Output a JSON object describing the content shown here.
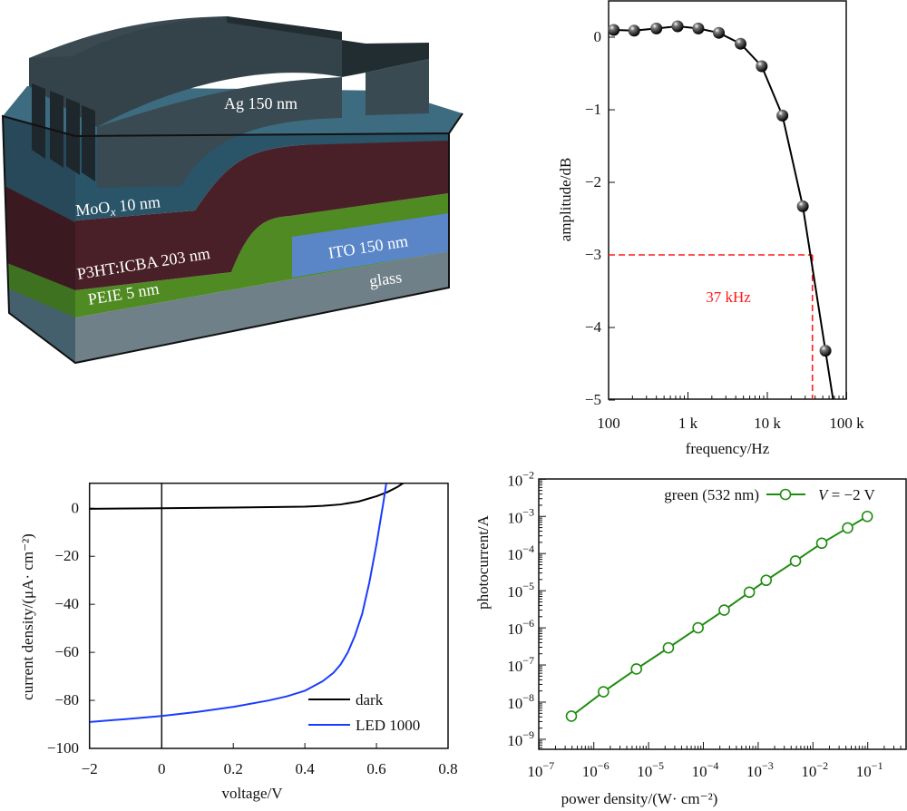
{
  "schematic": {
    "labels": {
      "ag": "Ag 150 nm",
      "moox_base": "MoO",
      "moox_sub": "x",
      "moox_rest": " 10 nm",
      "p3ht": "P3HT:ICBA 203 nm",
      "ito": "ITO 150 nm",
      "peie": "PEIE 5 nm",
      "glass": "glass"
    },
    "colors": {
      "ag": "#2f3d44",
      "moox": "#2a5468",
      "p3ht": "#4a2028",
      "peie": "#4f8a22",
      "ito": "#5a86c8",
      "glass": "#6f8088"
    }
  },
  "chart_data": [
    {
      "type": "line",
      "id": "frequency-response",
      "xlabel": "frequency/Hz",
      "ylabel": "amplitude/dB",
      "xscale": "log",
      "xlim": [
        100,
        100000
      ],
      "ylim": [
        -5,
        0.5
      ],
      "xticks": [
        100,
        1000,
        10000,
        100000
      ],
      "xticklabels": [
        "100",
        "1 k",
        "10 k",
        "100 k"
      ],
      "yticks": [
        0,
        -1,
        -2,
        -3,
        -4,
        -5
      ],
      "yticklabels": [
        "0",
        "−1",
        "−2",
        "−3",
        "−4",
        "−5"
      ],
      "series": [
        {
          "name": "amplitude",
          "color": "#000000",
          "x": [
            116,
            210,
            400,
            740,
            1350,
            2450,
            4600,
            8500,
            15500,
            28000,
            54000
          ],
          "y": [
            0.1,
            0.09,
            0.12,
            0.15,
            0.12,
            0.06,
            -0.09,
            -0.4,
            -1.08,
            -2.33,
            -4.32
          ]
        }
      ],
      "annotation": {
        "text": "37 kHz",
        "cutoff_db": -3,
        "cutoff_hz": 37000,
        "color": "#ff1a1a"
      }
    },
    {
      "type": "line",
      "id": "jv-curve",
      "xlabel": "voltage/V",
      "ylabel": "current density/(μA· cm⁻²)",
      "ylim": [
        -100,
        10
      ],
      "xticks": [
        -2,
        0,
        0.2,
        0.4,
        0.6,
        0.8
      ],
      "xticklabels": [
        "−2",
        "0",
        "0.2",
        "0.4",
        "0.6",
        "0.8"
      ],
      "yticks": [
        0,
        -20,
        -40,
        -60,
        -80,
        -100
      ],
      "yticklabels": [
        "0",
        "−20",
        "−40",
        "−60",
        "−80",
        "−100"
      ],
      "legend_position": "bottom-right",
      "series": [
        {
          "name": "dark",
          "color": "#000000",
          "x": [
            -2,
            0,
            0.2,
            0.4,
            0.45,
            0.5,
            0.55,
            0.6,
            0.63,
            0.66,
            0.675
          ],
          "y": [
            -0.2,
            0,
            0.3,
            0.7,
            1.0,
            1.6,
            2.8,
            5,
            6.7,
            9,
            10.5
          ]
        },
        {
          "name": "LED 1000",
          "color": "#1a3cff",
          "x": [
            -2,
            -1,
            0,
            0.1,
            0.2,
            0.3,
            0.35,
            0.4,
            0.45,
            0.48,
            0.5,
            0.52,
            0.54,
            0.56,
            0.58,
            0.6,
            0.61,
            0.62,
            0.628
          ],
          "y": [
            -89,
            -87.8,
            -86.5,
            -84.8,
            -82.7,
            -80,
            -78.3,
            -76,
            -72,
            -68.5,
            -65,
            -60,
            -53,
            -44,
            -31,
            -15,
            -6,
            3,
            11
          ]
        }
      ]
    },
    {
      "type": "scatter",
      "id": "photocurrent-vs-power",
      "xlabel": "power density/(W· cm⁻²)",
      "ylabel": "photocurrent/A",
      "xscale": "log",
      "yscale": "log",
      "xlim": [
        1e-07,
        0.5
      ],
      "ylim": [
        5e-10,
        0.01
      ],
      "xtick_exponents": [
        "−7",
        "−6",
        "−5",
        "−4",
        "−3",
        "−2",
        "−1"
      ],
      "ytick_exponents": [
        "−2",
        "−3",
        "−4",
        "−5",
        "−6",
        "−7",
        "−8",
        "−9"
      ],
      "tick_base": "10",
      "legend_position": "top-right",
      "legend": {
        "label": "green (532 nm)",
        "condition_var": "V",
        "condition_rest": " = −2 V"
      },
      "series": [
        {
          "name": "green (532 nm)",
          "color": "#1e8c0f",
          "x": [
            3.9e-07,
            1.5e-06,
            6e-06,
            2.3e-05,
            8e-05,
            0.00024,
            0.00069,
            0.0014,
            0.0048,
            0.0145,
            0.043,
            0.098
          ],
          "y": [
            4.2e-09,
            1.9e-08,
            7.8e-08,
            2.9e-07,
            1e-06,
            3e-06,
            9.1e-06,
            1.9e-05,
            6.3e-05,
            0.00019,
            0.00049,
            0.001
          ]
        }
      ]
    }
  ]
}
